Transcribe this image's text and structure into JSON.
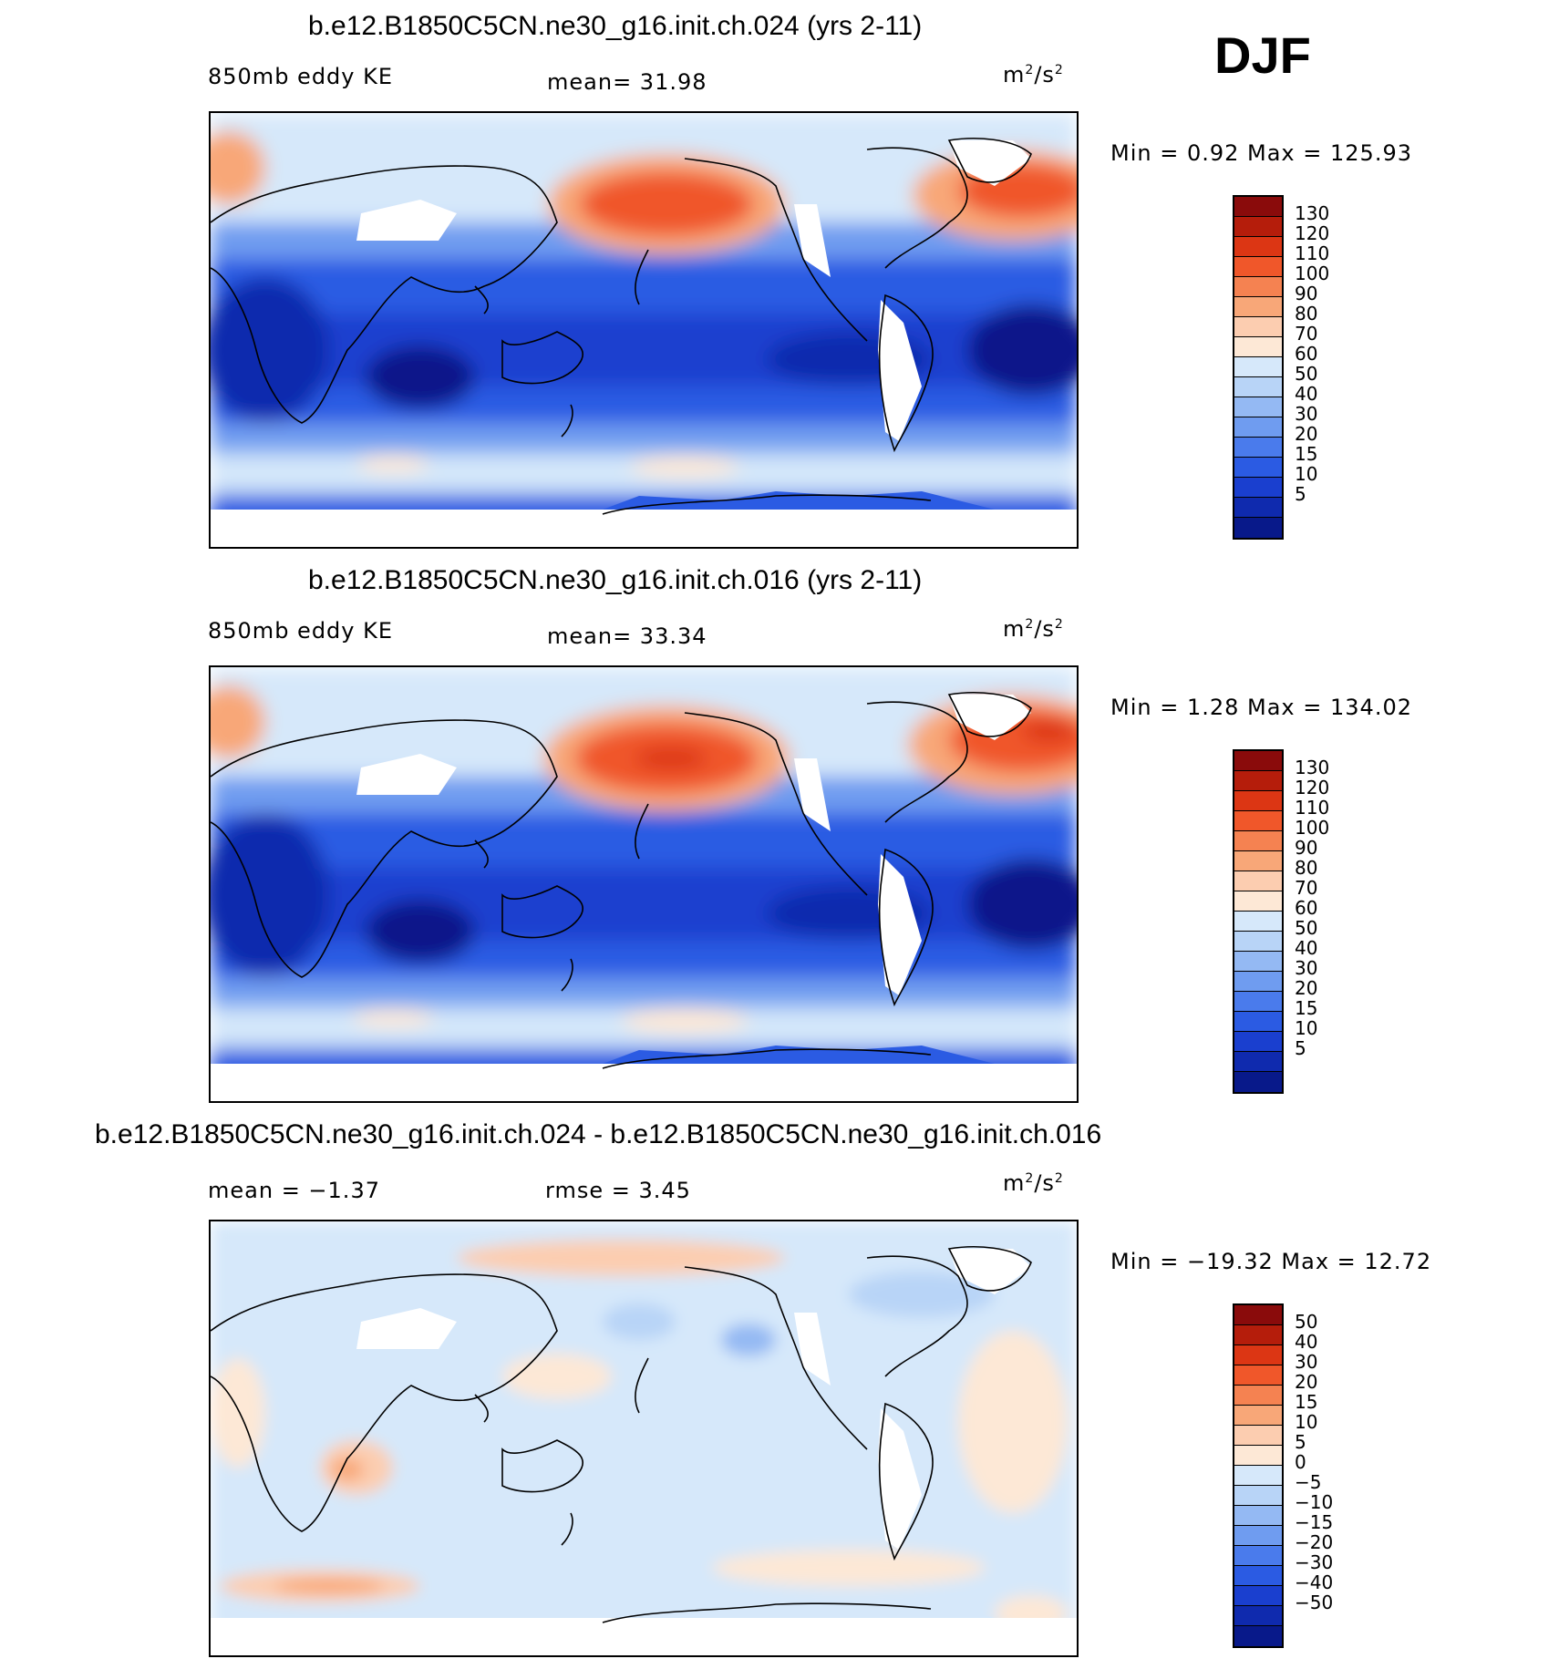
{
  "season": "DJF",
  "panels": [
    {
      "title": "b.e12.B1850C5CN.ne30_g16.init.ch.024 (yrs 2-11)",
      "left_label": "850mb eddy KE",
      "center_label": "mean=   31.98",
      "units_base": "m",
      "units_sup1": "2",
      "units_mid": "/s",
      "units_sup2": "2",
      "minmax": "Min =    0.92  Max  =  125.93",
      "colorbar_colors": [
        "#8a0b0b",
        "#b51d0b",
        "#dc3614",
        "#f0572a",
        "#f58251",
        "#f8a778",
        "#fccdb0",
        "#fde8d6",
        "#d6e8fa",
        "#b8d4f7",
        "#94b9f3",
        "#6f9cf0",
        "#4a7bec",
        "#2b5be3",
        "#1a3fcf",
        "#0f2aae",
        "#08198a"
      ],
      "colorbar_labels": [
        "130",
        "120",
        "110",
        "100",
        "90",
        "80",
        "70",
        "60",
        "50",
        "40",
        "30",
        "20",
        "15",
        "10",
        "5"
      ]
    },
    {
      "title": "b.e12.B1850C5CN.ne30_g16.init.ch.016 (yrs 2-11)",
      "left_label": "850mb eddy KE",
      "center_label": "mean=   33.34",
      "units_base": "m",
      "units_sup1": "2",
      "units_mid": "/s",
      "units_sup2": "2",
      "minmax": "Min =    1.28  Max  =  134.02",
      "colorbar_colors": [
        "#8a0b0b",
        "#b51d0b",
        "#dc3614",
        "#f0572a",
        "#f58251",
        "#f8a778",
        "#fccdb0",
        "#fde8d6",
        "#d6e8fa",
        "#b8d4f7",
        "#94b9f3",
        "#6f9cf0",
        "#4a7bec",
        "#2b5be3",
        "#1a3fcf",
        "#0f2aae",
        "#08198a"
      ],
      "colorbar_labels": [
        "130",
        "120",
        "110",
        "100",
        "90",
        "80",
        "70",
        "60",
        "50",
        "40",
        "30",
        "20",
        "15",
        "10",
        "5"
      ]
    },
    {
      "title": "b.e12.B1850C5CN.ne30_g16.init.ch.024 - b.e12.B1850C5CN.ne30_g16.init.ch.016",
      "left_label": "mean =   −1.37",
      "center_label": "rmse =    3.45",
      "units_base": "m",
      "units_sup1": "2",
      "units_mid": "/s",
      "units_sup2": "2",
      "minmax": "Min  = −19.32  Max  =    12.72",
      "colorbar_colors": [
        "#8a0b0b",
        "#b51d0b",
        "#dc3614",
        "#f0572a",
        "#f58251",
        "#f8a778",
        "#fccdb0",
        "#fde8d6",
        "#d6e8fa",
        "#b8d4f7",
        "#94b9f3",
        "#6f9cf0",
        "#4a7bec",
        "#2b5be3",
        "#1a3fcf",
        "#0f2aae",
        "#08198a"
      ],
      "colorbar_labels": [
        "50",
        "40",
        "30",
        "20",
        "15",
        "10",
        "5",
        "0",
        "−5",
        "−10",
        "−15",
        "−20",
        "−30",
        "−40",
        "−50"
      ]
    }
  ]
}
